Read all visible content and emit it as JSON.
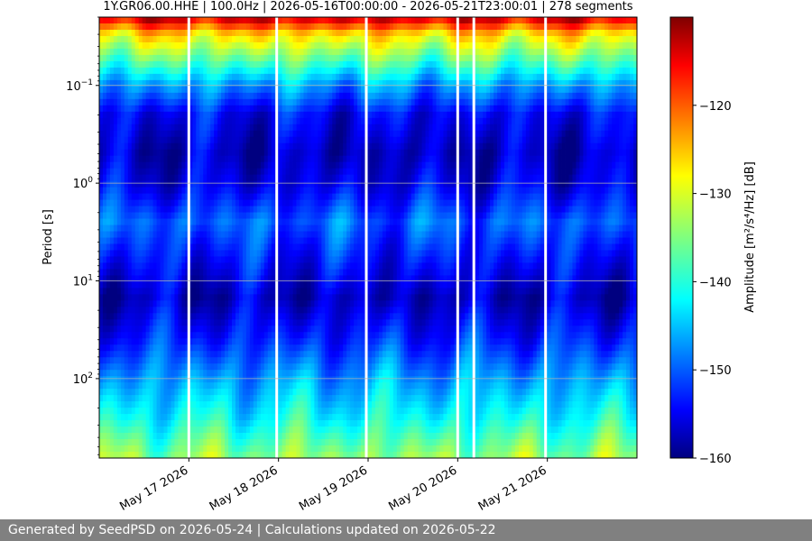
{
  "footer": {
    "text": "Generated by SeedPSD on 2026-05-24 | Calculations updated on 2026-05-22"
  },
  "chart_data": {
    "type": "heatmap",
    "title": "1Y.GR06.00.HHE | 100.0Hz | 2026-05-16T00:00:00 - 2026-05-21T23:00:01 | 278 segments",
    "ylabel": "Period [s]",
    "xlabel": "",
    "y_scale": "log",
    "y_inverted": true,
    "ylim": [
      0.02,
      650
    ],
    "y_ticks": [
      {
        "value": 0.1,
        "base": "10",
        "exp": "−1"
      },
      {
        "value": 1,
        "base": "10",
        "exp": "0"
      },
      {
        "value": 10,
        "base": "10",
        "exp": "1"
      },
      {
        "value": 100,
        "base": "10",
        "exp": "2"
      }
    ],
    "x_range_days": [
      0,
      6
    ],
    "x_ticks": [
      {
        "day": 1,
        "label": "May 17 2026"
      },
      {
        "day": 2,
        "label": "May 18 2026"
      },
      {
        "day": 3,
        "label": "May 19 2026"
      },
      {
        "day": 4,
        "label": "May 20 2026"
      },
      {
        "day": 5,
        "label": "May 21 2026"
      }
    ],
    "gaps_days": [
      1.0,
      1.98,
      2.98,
      4.0,
      4.18,
      4.98
    ],
    "grid": true,
    "colorbar": {
      "label": "Amplitude [m²/s⁴/Hz] [dB]",
      "range": [
        -160,
        -110
      ],
      "ticks": [
        -120,
        -130,
        -140,
        -150,
        -160
      ],
      "tick_labels": [
        "−120",
        "−130",
        "−140",
        "−150",
        "−160"
      ],
      "colormap": "jet"
    },
    "amplitude_profile_db": [
      {
        "period_s": 0.02,
        "db": -113
      },
      {
        "period_s": 0.03,
        "db": -127
      },
      {
        "period_s": 0.05,
        "db": -135
      },
      {
        "period_s": 0.1,
        "db": -146
      },
      {
        "period_s": 0.2,
        "db": -154
      },
      {
        "period_s": 0.5,
        "db": -157
      },
      {
        "period_s": 1,
        "db": -155
      },
      {
        "period_s": 2.5,
        "db": -149
      },
      {
        "period_s": 6,
        "db": -153
      },
      {
        "period_s": 15,
        "db": -157
      },
      {
        "period_s": 40,
        "db": -152
      },
      {
        "period_s": 100,
        "db": -146
      },
      {
        "period_s": 250,
        "db": -141
      },
      {
        "period_s": 650,
        "db": -134
      }
    ]
  }
}
